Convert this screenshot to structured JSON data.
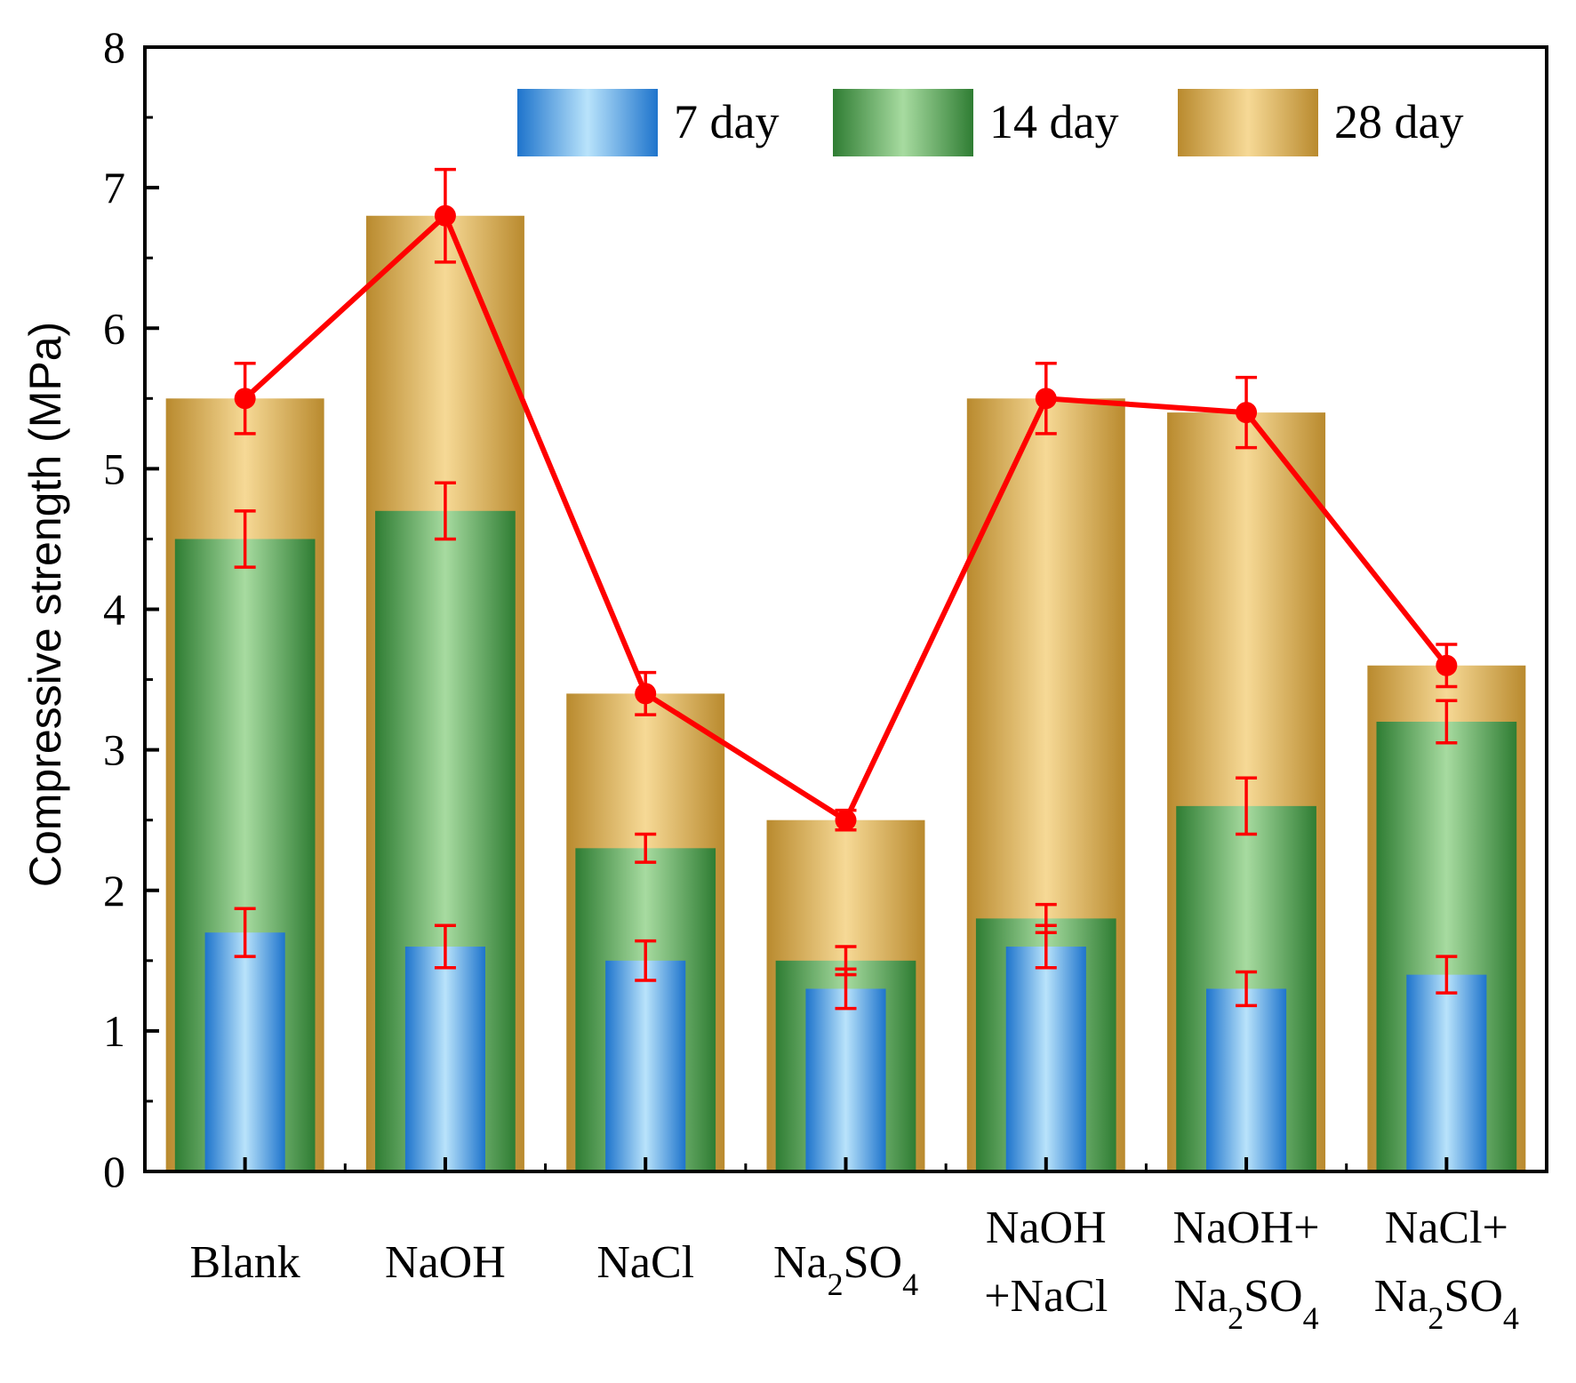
{
  "chart_data": {
    "type": "bar",
    "ylabel": "Compressive strength (MPa)",
    "xlabel": "",
    "ylim": [
      0,
      8
    ],
    "yticks": [
      "0",
      "1",
      "2",
      "3",
      "4",
      "5",
      "6",
      "7",
      "8"
    ],
    "categories": [
      {
        "id": "blank",
        "lines": [
          [
            {
              "t": "Blank"
            }
          ]
        ]
      },
      {
        "id": "naoh",
        "lines": [
          [
            {
              "t": "NaOH"
            }
          ]
        ]
      },
      {
        "id": "nacl",
        "lines": [
          [
            {
              "t": "NaCl"
            }
          ]
        ]
      },
      {
        "id": "na2so4",
        "lines": [
          [
            {
              "t": "Na"
            },
            {
              "t": "2",
              "sub": true
            },
            {
              "t": "SO"
            },
            {
              "t": "4",
              "sub": true
            }
          ]
        ]
      },
      {
        "id": "naoh-nacl",
        "lines": [
          [
            {
              "t": "NaOH"
            }
          ],
          [
            {
              "t": "+NaCl"
            }
          ]
        ]
      },
      {
        "id": "naoh-na2so4",
        "lines": [
          [
            {
              "t": "NaOH+"
            }
          ],
          [
            {
              "t": "Na"
            },
            {
              "t": "2",
              "sub": true
            },
            {
              "t": "SO"
            },
            {
              "t": "4",
              "sub": true
            }
          ]
        ]
      },
      {
        "id": "nacl-na2so4",
        "lines": [
          [
            {
              "t": "NaCl+"
            }
          ],
          [
            {
              "t": "Na"
            },
            {
              "t": "2",
              "sub": true
            },
            {
              "t": "SO"
            },
            {
              "t": "4",
              "sub": true
            }
          ]
        ]
      }
    ],
    "series": [
      {
        "name": "7 day",
        "values": [
          1.7,
          1.6,
          1.5,
          1.3,
          1.6,
          1.3,
          1.4
        ],
        "errors": [
          0.17,
          0.15,
          0.14,
          0.14,
          0.15,
          0.12,
          0.13
        ],
        "colors": [
          "#1e74cc",
          "#b9e3fb"
        ]
      },
      {
        "name": "14 day",
        "values": [
          4.5,
          4.7,
          2.3,
          1.5,
          1.8,
          2.6,
          3.2
        ],
        "errors": [
          0.2,
          0.2,
          0.1,
          0.1,
          0.1,
          0.2,
          0.15
        ],
        "colors": [
          "#2f7d33",
          "#a7dba0"
        ]
      },
      {
        "name": "28 day",
        "values": [
          5.5,
          6.8,
          3.4,
          2.5,
          5.5,
          5.4,
          3.6
        ],
        "errors": [
          0.25,
          0.33,
          0.15,
          0.07,
          0.25,
          0.25,
          0.15
        ],
        "colors": [
          "#b98a2e",
          "#f6d996"
        ]
      }
    ],
    "line": {
      "series": "28 day",
      "color": "#ff0000"
    },
    "legend": {
      "placement": "top-right"
    },
    "grid": false
  }
}
